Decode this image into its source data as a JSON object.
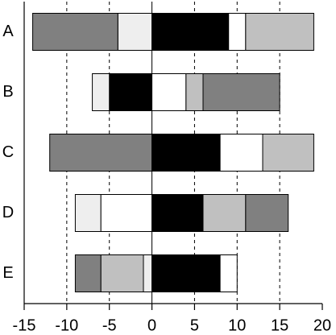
{
  "chart_data": {
    "type": "diverging-stacked-bar",
    "categories": [
      "A",
      "B",
      "C",
      "D",
      "E"
    ],
    "segments": [
      [
        {
          "value": -4,
          "color": "#eeeeee"
        },
        {
          "value": -10,
          "color": "#808080"
        },
        {
          "value": 9,
          "color": "#000000"
        },
        {
          "value": 2,
          "color": "#ffffff"
        },
        {
          "value": 8,
          "color": "#c0c0c0"
        }
      ],
      [
        {
          "value": -5,
          "color": "#000000"
        },
        {
          "value": -2,
          "color": "#eeeeee"
        },
        {
          "value": 4,
          "color": "#ffffff"
        },
        {
          "value": 2,
          "color": "#c0c0c0"
        },
        {
          "value": 9,
          "color": "#808080"
        }
      ],
      [
        {
          "value": -12,
          "color": "#808080"
        },
        {
          "value": 8,
          "color": "#000000"
        },
        {
          "value": 5,
          "color": "#ffffff"
        },
        {
          "value": 6,
          "color": "#c0c0c0"
        }
      ],
      [
        {
          "value": -6,
          "color": "#ffffff"
        },
        {
          "value": -3,
          "color": "#eeeeee"
        },
        {
          "value": 6,
          "color": "#000000"
        },
        {
          "value": 5,
          "color": "#c0c0c0"
        },
        {
          "value": 5,
          "color": "#808080"
        }
      ],
      [
        {
          "value": -1,
          "color": "#eeeeee"
        },
        {
          "value": -5,
          "color": "#c0c0c0"
        },
        {
          "value": -3,
          "color": "#808080"
        },
        {
          "value": 8,
          "color": "#000000"
        },
        {
          "value": 2,
          "color": "#ffffff"
        }
      ]
    ],
    "xlim": [
      -15,
      20
    ],
    "xticks": [
      -15,
      -10,
      -5,
      0,
      5,
      10,
      15,
      20
    ],
    "grid": true
  }
}
